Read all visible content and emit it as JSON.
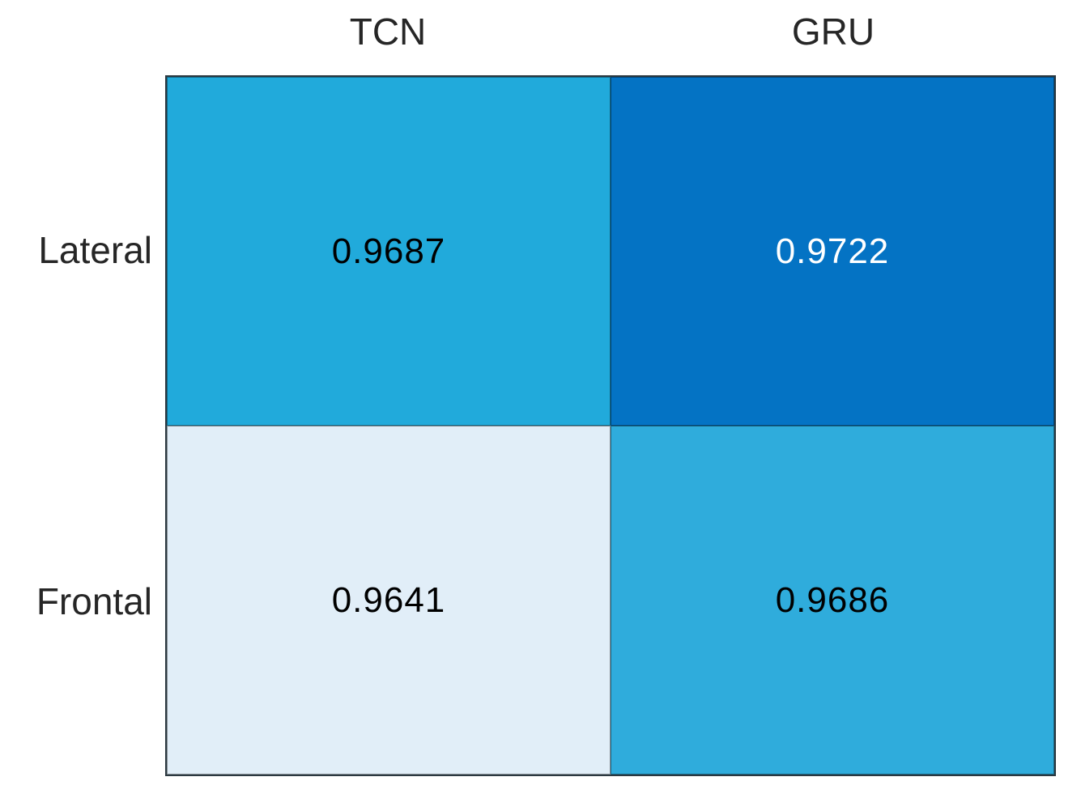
{
  "chart_data": {
    "type": "heatmap",
    "title": "",
    "x_categories": [
      "TCN",
      "GRU"
    ],
    "y_categories": [
      "Lateral",
      "Frontal"
    ],
    "values": [
      [
        0.9687,
        0.9722
      ],
      [
        0.9641,
        0.9686
      ]
    ],
    "value_range_hint": [
      0.9641,
      0.9722
    ],
    "colormap": "light-to-dark blue",
    "grid_on": true,
    "legend": "none",
    "cells": [
      {
        "row": "Lateral",
        "col": "TCN",
        "label": "0.9687",
        "bg": "#21aadb",
        "fg": "#000000"
      },
      {
        "row": "Lateral",
        "col": "GRU",
        "label": "0.9722",
        "bg": "#0473c4",
        "fg": "#ffffff"
      },
      {
        "row": "Frontal",
        "col": "TCN",
        "label": "0.9641",
        "bg": "#e1eef8",
        "fg": "#000000"
      },
      {
        "row": "Frontal",
        "col": "GRU",
        "label": "0.9686",
        "bg": "#2facdc",
        "fg": "#000000"
      }
    ],
    "colors": {
      "axis_label_text": "#262626",
      "outer_border": "#2b3840",
      "inner_gridline": "rgba(0,0,0,0.40)",
      "background": "#ffffff"
    }
  },
  "headers": {
    "col0": "TCN",
    "col1": "GRU"
  },
  "row_labels": {
    "row0": "Lateral",
    "row1": "Frontal"
  }
}
